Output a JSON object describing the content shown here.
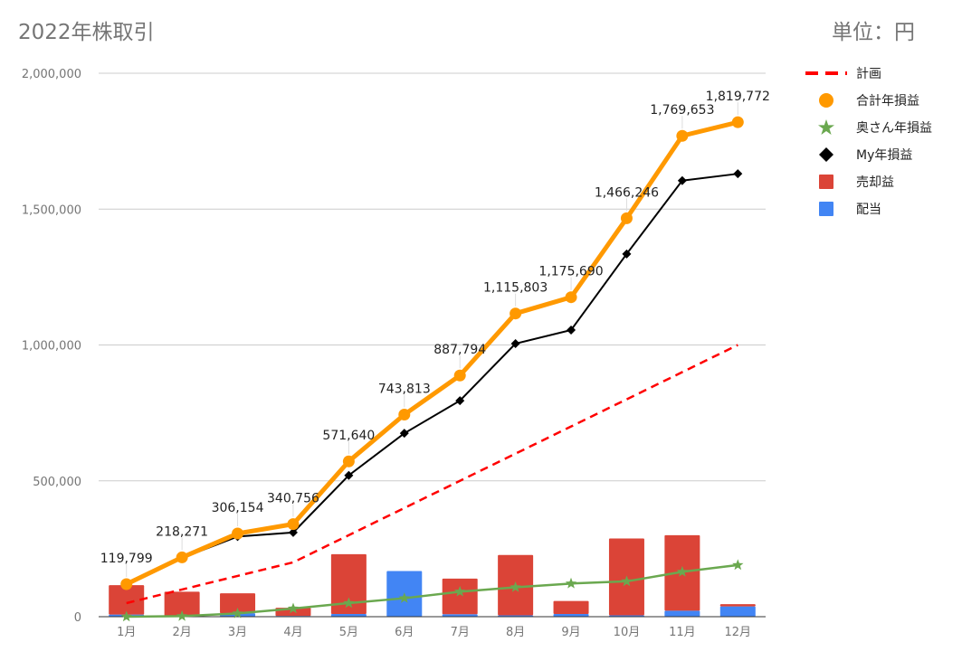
{
  "colors": {
    "plan": "#ff0000",
    "total": "#ff9900",
    "wife": "#6aa84f",
    "my": "#000000",
    "sales": "#db4437",
    "dividend": "#4285f4",
    "grid": "#cccccc",
    "axis": "#333333",
    "text": "#757575"
  },
  "chart_data": {
    "type": "combo",
    "title": "2022年株取引",
    "unit_label": "単位：円",
    "categories": [
      "1月",
      "2月",
      "3月",
      "4月",
      "5月",
      "6月",
      "7月",
      "8月",
      "9月",
      "10月",
      "11月",
      "12月"
    ],
    "ylim": [
      0,
      2000000
    ],
    "yticks": [
      0,
      500000,
      1000000,
      1500000,
      2000000
    ],
    "ytick_labels": [
      "0",
      "500,000",
      "1,000,000",
      "1,500,000",
      "2,000,000"
    ],
    "legend_position": "right",
    "series": [
      {
        "name": "計画",
        "kind": "line-dashed",
        "values": [
          50000,
          100000,
          150000,
          200000,
          300000,
          400000,
          500000,
          600000,
          700000,
          800000,
          900000,
          1000000
        ]
      },
      {
        "name": "合計年損益",
        "kind": "line-circle",
        "values": [
          119799,
          218271,
          306154,
          340756,
          571640,
          743813,
          887794,
          1115803,
          1175690,
          1466246,
          1769653,
          1819772
        ],
        "labels": [
          "119,799",
          "218,271",
          "306,154",
          "340,756",
          "571,640",
          "743,813",
          "887,794",
          "1,115,803",
          "1,175,690",
          "1,466,246",
          "1,769,653",
          "1,819,772"
        ]
      },
      {
        "name": "奥さん年損益",
        "kind": "line-star",
        "values": [
          0,
          2000,
          12000,
          30000,
          50000,
          68000,
          92000,
          108000,
          122000,
          130000,
          165000,
          190000
        ]
      },
      {
        "name": "My年損益",
        "kind": "line-diamond",
        "values": [
          118000,
          216000,
          295000,
          310000,
          520000,
          675000,
          795000,
          1005000,
          1055000,
          1335000,
          1605000,
          1630000
        ]
      },
      {
        "name": "売却益",
        "kind": "bar-stack",
        "values": [
          108000,
          92000,
          73000,
          30000,
          220000,
          0,
          131000,
          222000,
          48000,
          283000,
          278000,
          8000
        ]
      },
      {
        "name": "配当",
        "kind": "bar-stack",
        "values": [
          8000,
          0,
          13000,
          3000,
          10000,
          168000,
          9000,
          5000,
          10000,
          5000,
          22000,
          38000
        ]
      }
    ]
  }
}
